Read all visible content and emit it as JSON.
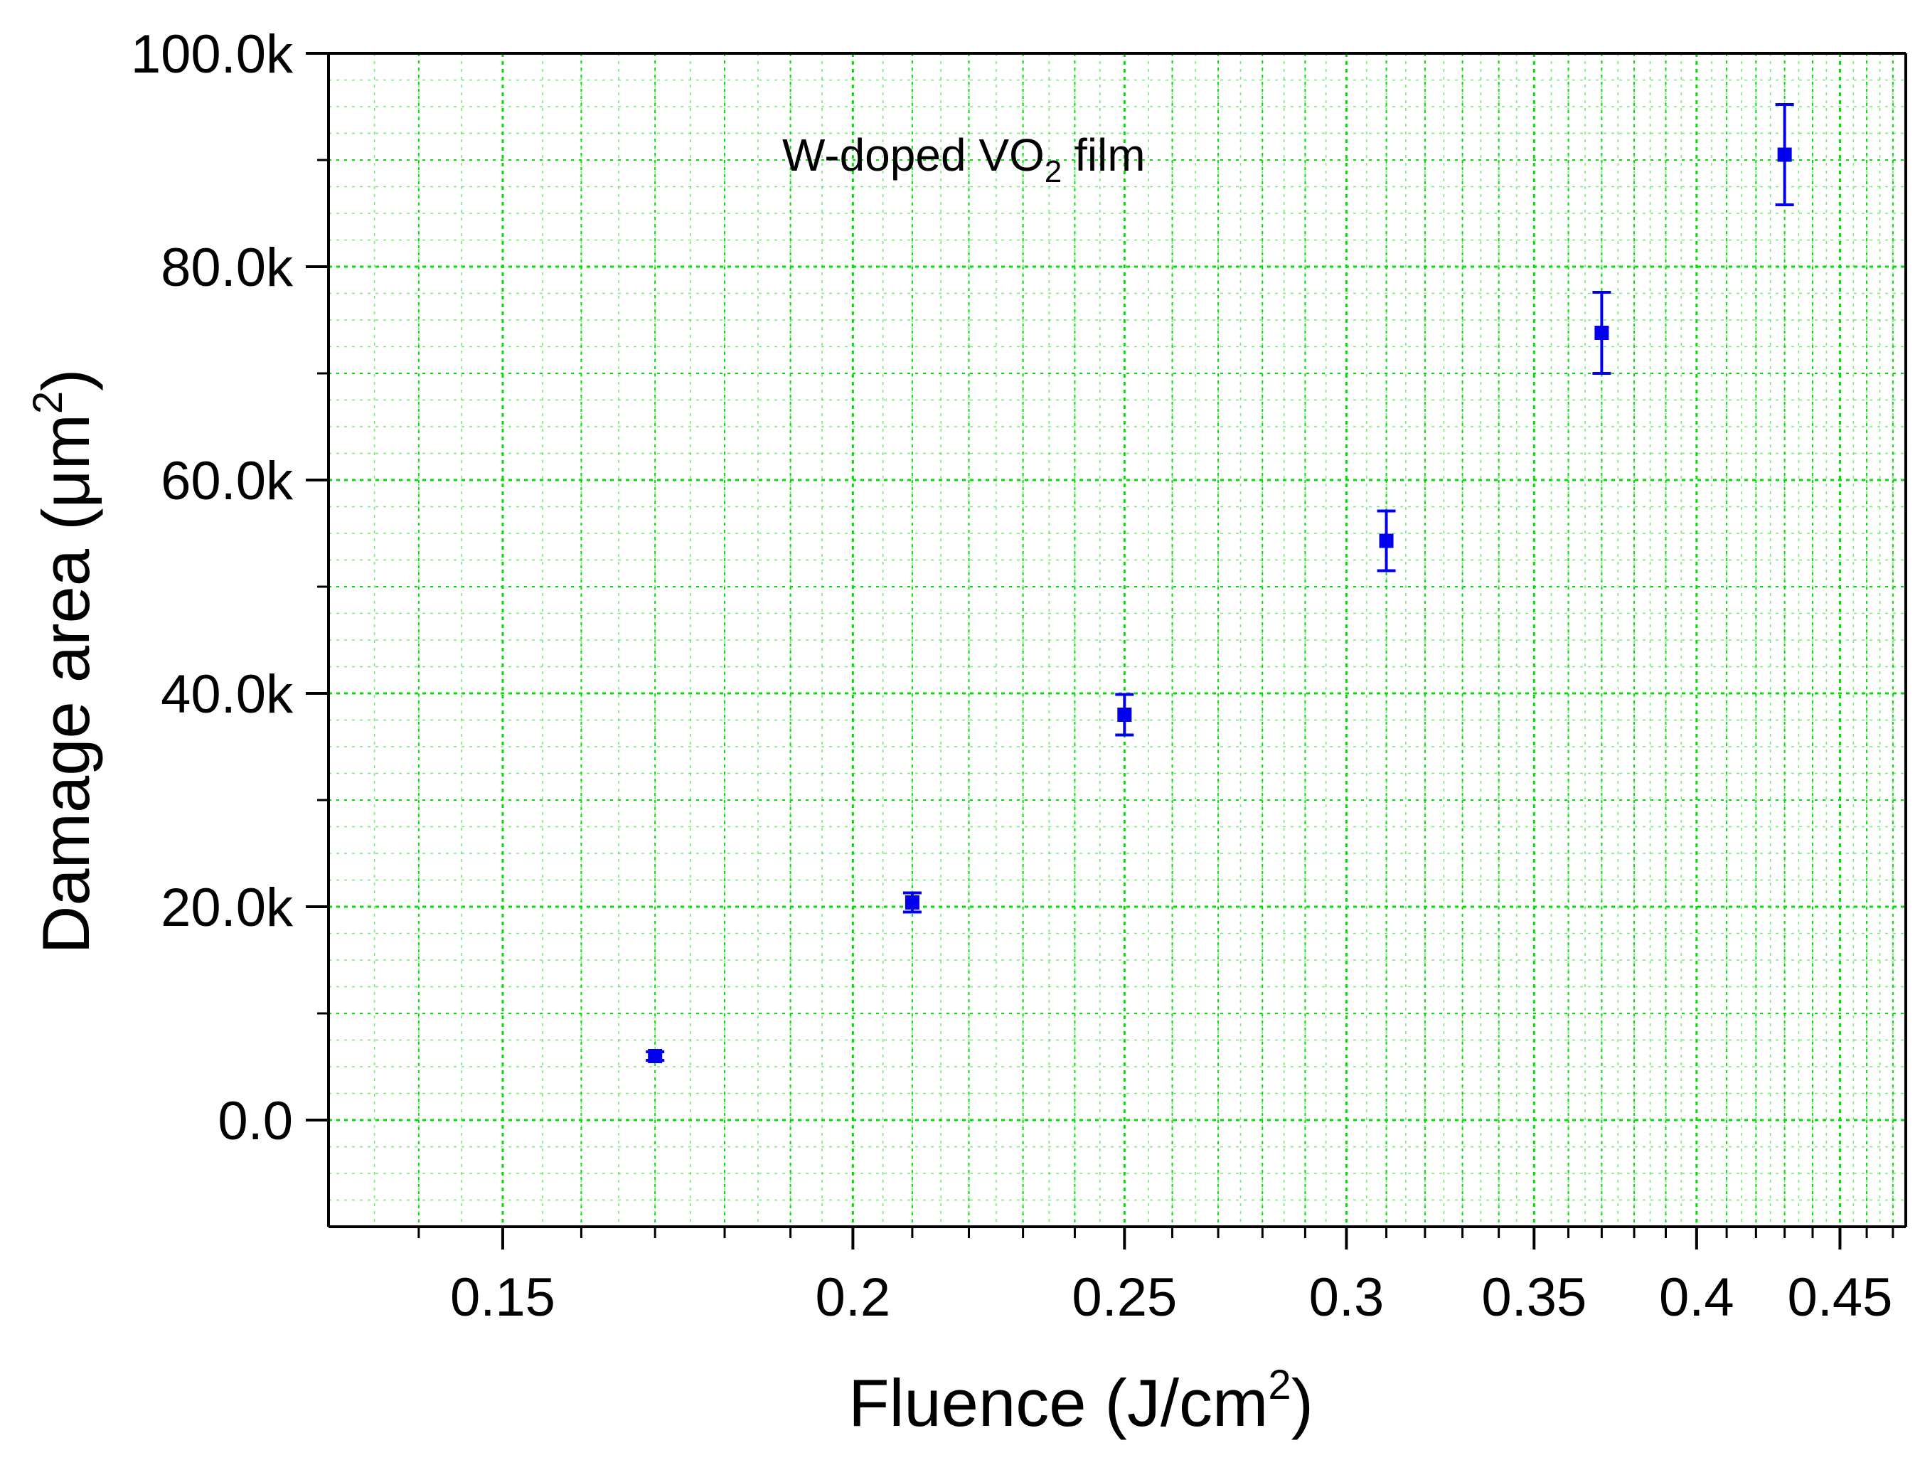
{
  "chart_data": {
    "type": "scatter",
    "title": "",
    "annotation": {
      "text": "W-doped VO",
      "subscript": "2",
      "suffix": " film"
    },
    "xlabel": {
      "text": "Fluence (J/cm",
      "superscript": "2",
      "suffix": ")"
    },
    "ylabel": {
      "text": "Damage area (μm",
      "superscript": "2",
      "suffix": ")"
    },
    "x_scale": "log",
    "xlim": [
      0.13,
      0.475
    ],
    "ylim": [
      -10000,
      100000
    ],
    "grid": true,
    "x_ticks": [
      {
        "value": 0.15,
        "label": "0.15"
      },
      {
        "value": 0.2,
        "label": "0.2"
      },
      {
        "value": 0.25,
        "label": "0.25"
      },
      {
        "value": 0.3,
        "label": "0.3"
      },
      {
        "value": 0.35,
        "label": "0.35"
      },
      {
        "value": 0.4,
        "label": "0.4"
      },
      {
        "value": 0.45,
        "label": "0.45"
      }
    ],
    "y_ticks": [
      {
        "value": 0,
        "label": "0.0"
      },
      {
        "value": 20000,
        "label": "20.0k"
      },
      {
        "value": 40000,
        "label": "40.0k"
      },
      {
        "value": 60000,
        "label": "60.0k"
      },
      {
        "value": 80000,
        "label": "80.0k"
      },
      {
        "value": 100000,
        "label": "100.0k"
      }
    ],
    "series": [
      {
        "name": "W-doped VO2 film",
        "color": "#0000ee",
        "points": [
          {
            "x": 0.17,
            "y": 6000,
            "err": 400
          },
          {
            "x": 0.21,
            "y": 20400,
            "err": 900
          },
          {
            "x": 0.25,
            "y": 38000,
            "err": 1900
          },
          {
            "x": 0.31,
            "y": 54300,
            "err": 2800
          },
          {
            "x": 0.37,
            "y": 73800,
            "err": 3800
          },
          {
            "x": 0.43,
            "y": 90500,
            "err": 4700
          }
        ]
      }
    ],
    "grid_color": "#00e000",
    "axis_color": "#000000"
  }
}
